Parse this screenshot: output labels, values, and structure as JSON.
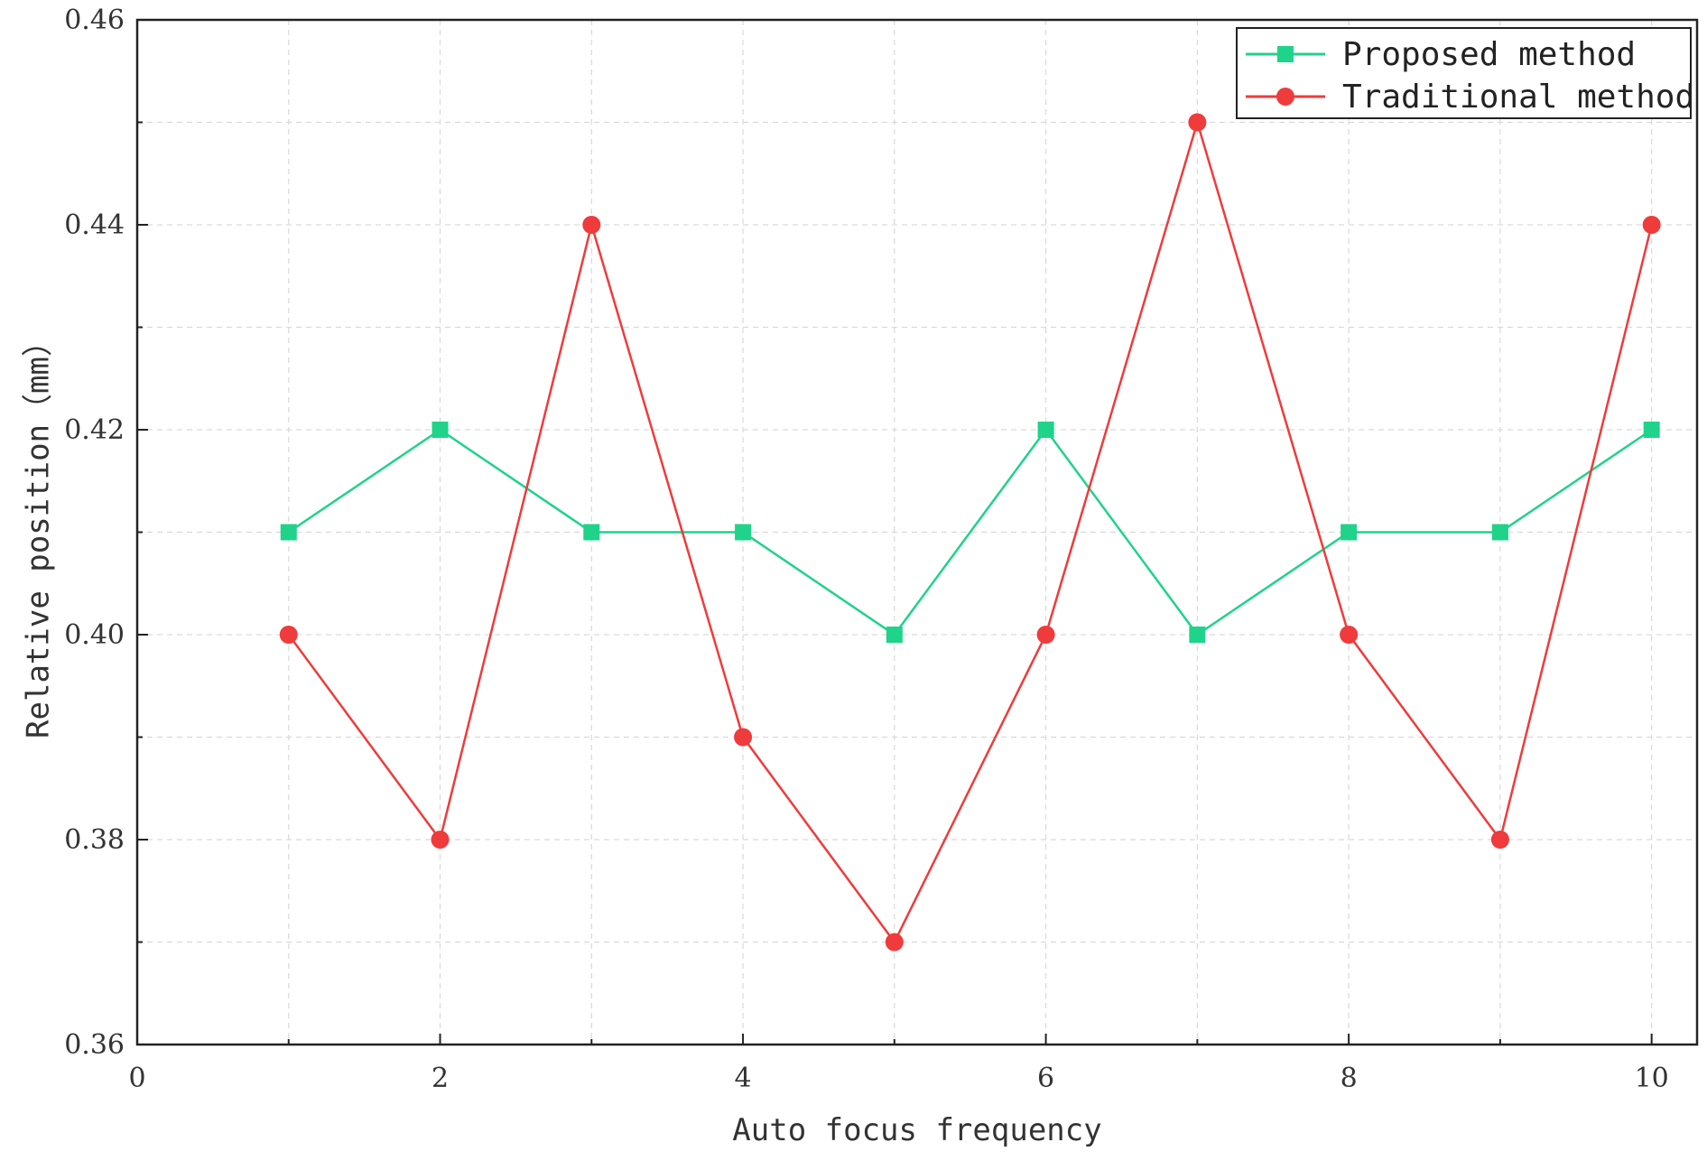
{
  "chart_data": {
    "type": "line",
    "title": "",
    "xlabel": "Auto focus frequency",
    "ylabel": "Relative position（mm）",
    "xlim": [
      0,
      10.3
    ],
    "ylim": [
      0.36,
      0.46
    ],
    "x_ticks": [
      0,
      2,
      4,
      6,
      8,
      10
    ],
    "x_tick_labels": [
      "0",
      "2",
      "4",
      "6",
      "8",
      "10"
    ],
    "y_ticks": [
      0.36,
      0.38,
      0.4,
      0.42,
      0.44,
      0.46
    ],
    "y_tick_labels": [
      "0.36",
      "0.38",
      "0.40",
      "0.42",
      "0.44",
      "0.46"
    ],
    "grid": true,
    "legend_position": "top-right",
    "x": [
      1,
      2,
      3,
      4,
      5,
      6,
      7,
      8,
      9,
      10
    ],
    "series": [
      {
        "name": "Proposed method",
        "color": "#1fd38a",
        "marker": "square",
        "values": [
          0.41,
          0.42,
          0.41,
          0.41,
          0.4,
          0.42,
          0.4,
          0.41,
          0.41,
          0.42
        ]
      },
      {
        "name": "Traditional method",
        "color": "#ef3b3b",
        "marker": "circle",
        "values": [
          0.4,
          0.38,
          0.44,
          0.39,
          0.37,
          0.4,
          0.45,
          0.4,
          0.38,
          0.44
        ]
      }
    ]
  }
}
